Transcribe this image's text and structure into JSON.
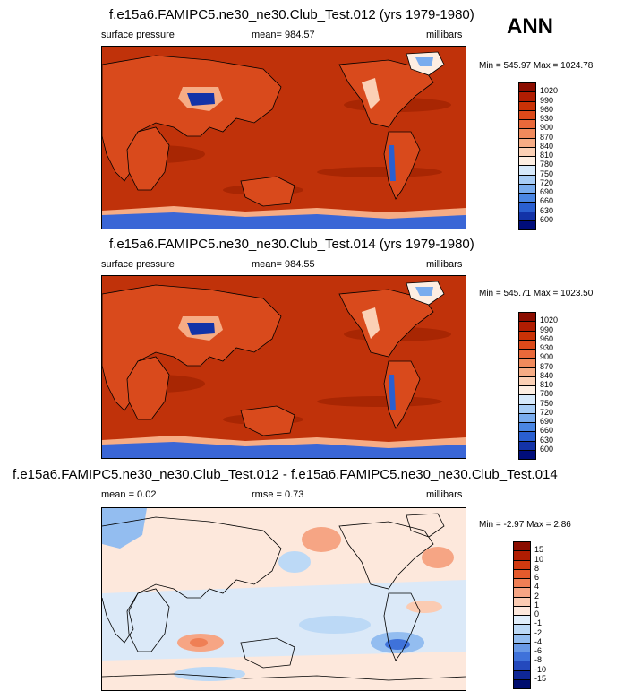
{
  "season": "ANN",
  "panels": [
    {
      "title": "f.e15a6.FAMIPC5.ne30_ne30.Club_Test.012 (yrs 1979-1980)",
      "left": "surface pressure",
      "center": "mean= 984.57",
      "right": "millibars",
      "minmax": "Min = 545.97 Max = 1024.78"
    },
    {
      "title": "f.e15a6.FAMIPC5.ne30_ne30.Club_Test.014 (yrs 1979-1980)",
      "left": "surface pressure",
      "center": "mean= 984.55",
      "right": "millibars",
      "minmax": "Min = 545.71 Max = 1023.50"
    },
    {
      "title": "f.e15a6.FAMIPC5.ne30_ne30.Club_Test.012 - f.e15a6.FAMIPC5.ne30_ne30.Club_Test.014",
      "left": "mean =  0.02",
      "center": "rmse =   0.73",
      "right": "millibars",
      "minmax": "Min =  -2.97 Max =   2.86"
    }
  ],
  "chart_data": [
    {
      "type": "heatmap",
      "title": "f.e15a6.FAMIPC5.ne30_ne30.Club_Test.012 (yrs 1979-1980)",
      "variable": "surface pressure",
      "units": "millibars",
      "mean": 984.57,
      "min": 545.97,
      "max": 1024.78,
      "colorbar_levels": [
        "1020",
        "990",
        "960",
        "930",
        "900",
        "870",
        "840",
        "810",
        "780",
        "750",
        "720",
        "690",
        "660",
        "630",
        "600"
      ],
      "colorbar_colors": [
        "#8b0d00",
        "#b01d02",
        "#c93206",
        "#dc4a1a",
        "#e9693a",
        "#f08a5c",
        "#f6ac85",
        "#fbd0b5",
        "#fdeee2",
        "#d6e9fb",
        "#a8cdf6",
        "#79acee",
        "#4a86e3",
        "#2a5fd0",
        "#1333a8",
        "#000d7a"
      ]
    },
    {
      "type": "heatmap",
      "title": "f.e15a6.FAMIPC5.ne30_ne30.Club_Test.014 (yrs 1979-1980)",
      "variable": "surface pressure",
      "units": "millibars",
      "mean": 984.55,
      "min": 545.71,
      "max": 1023.5,
      "colorbar_levels": [
        "1020",
        "990",
        "960",
        "930",
        "900",
        "870",
        "840",
        "810",
        "780",
        "750",
        "720",
        "690",
        "660",
        "630",
        "600"
      ],
      "colorbar_colors": [
        "#8b0d00",
        "#b01d02",
        "#c93206",
        "#dc4a1a",
        "#e9693a",
        "#f08a5c",
        "#f6ac85",
        "#fbd0b5",
        "#fdeee2",
        "#d6e9fb",
        "#a8cdf6",
        "#79acee",
        "#4a86e3",
        "#2a5fd0",
        "#1333a8",
        "#000d7a"
      ]
    },
    {
      "type": "heatmap",
      "title": "f.e15a6.FAMIPC5.ne30_ne30.Club_Test.012 - f.e15a6.FAMIPC5.ne30_ne30.Club_Test.014",
      "units": "millibars",
      "mean": 0.02,
      "rmse": 0.73,
      "min": -2.97,
      "max": 2.86,
      "colorbar_levels": [
        "15",
        "10",
        "8",
        "6",
        "4",
        "2",
        "1",
        "0",
        "-1",
        "-2",
        "-4",
        "-6",
        "-8",
        "-10",
        "-15"
      ],
      "colorbar_colors": [
        "#8b0d00",
        "#b01d02",
        "#d13a10",
        "#e45a2c",
        "#ef7f55",
        "#f6a584",
        "#fbcbb2",
        "#fde8dc",
        "#e0eefb",
        "#bcd9f6",
        "#93bdf0",
        "#6899e6",
        "#3f72da",
        "#2449bd",
        "#0f2796",
        "#000d6e"
      ]
    }
  ],
  "colors": {
    "ocean_high": "#c0320a",
    "land_red": "#d94a1c",
    "land_light": "#f6ac85",
    "antarctic_blue": "#3a66d6",
    "diff_background": "#fde8dc",
    "diff_light_blue": "#dbe9f8"
  }
}
